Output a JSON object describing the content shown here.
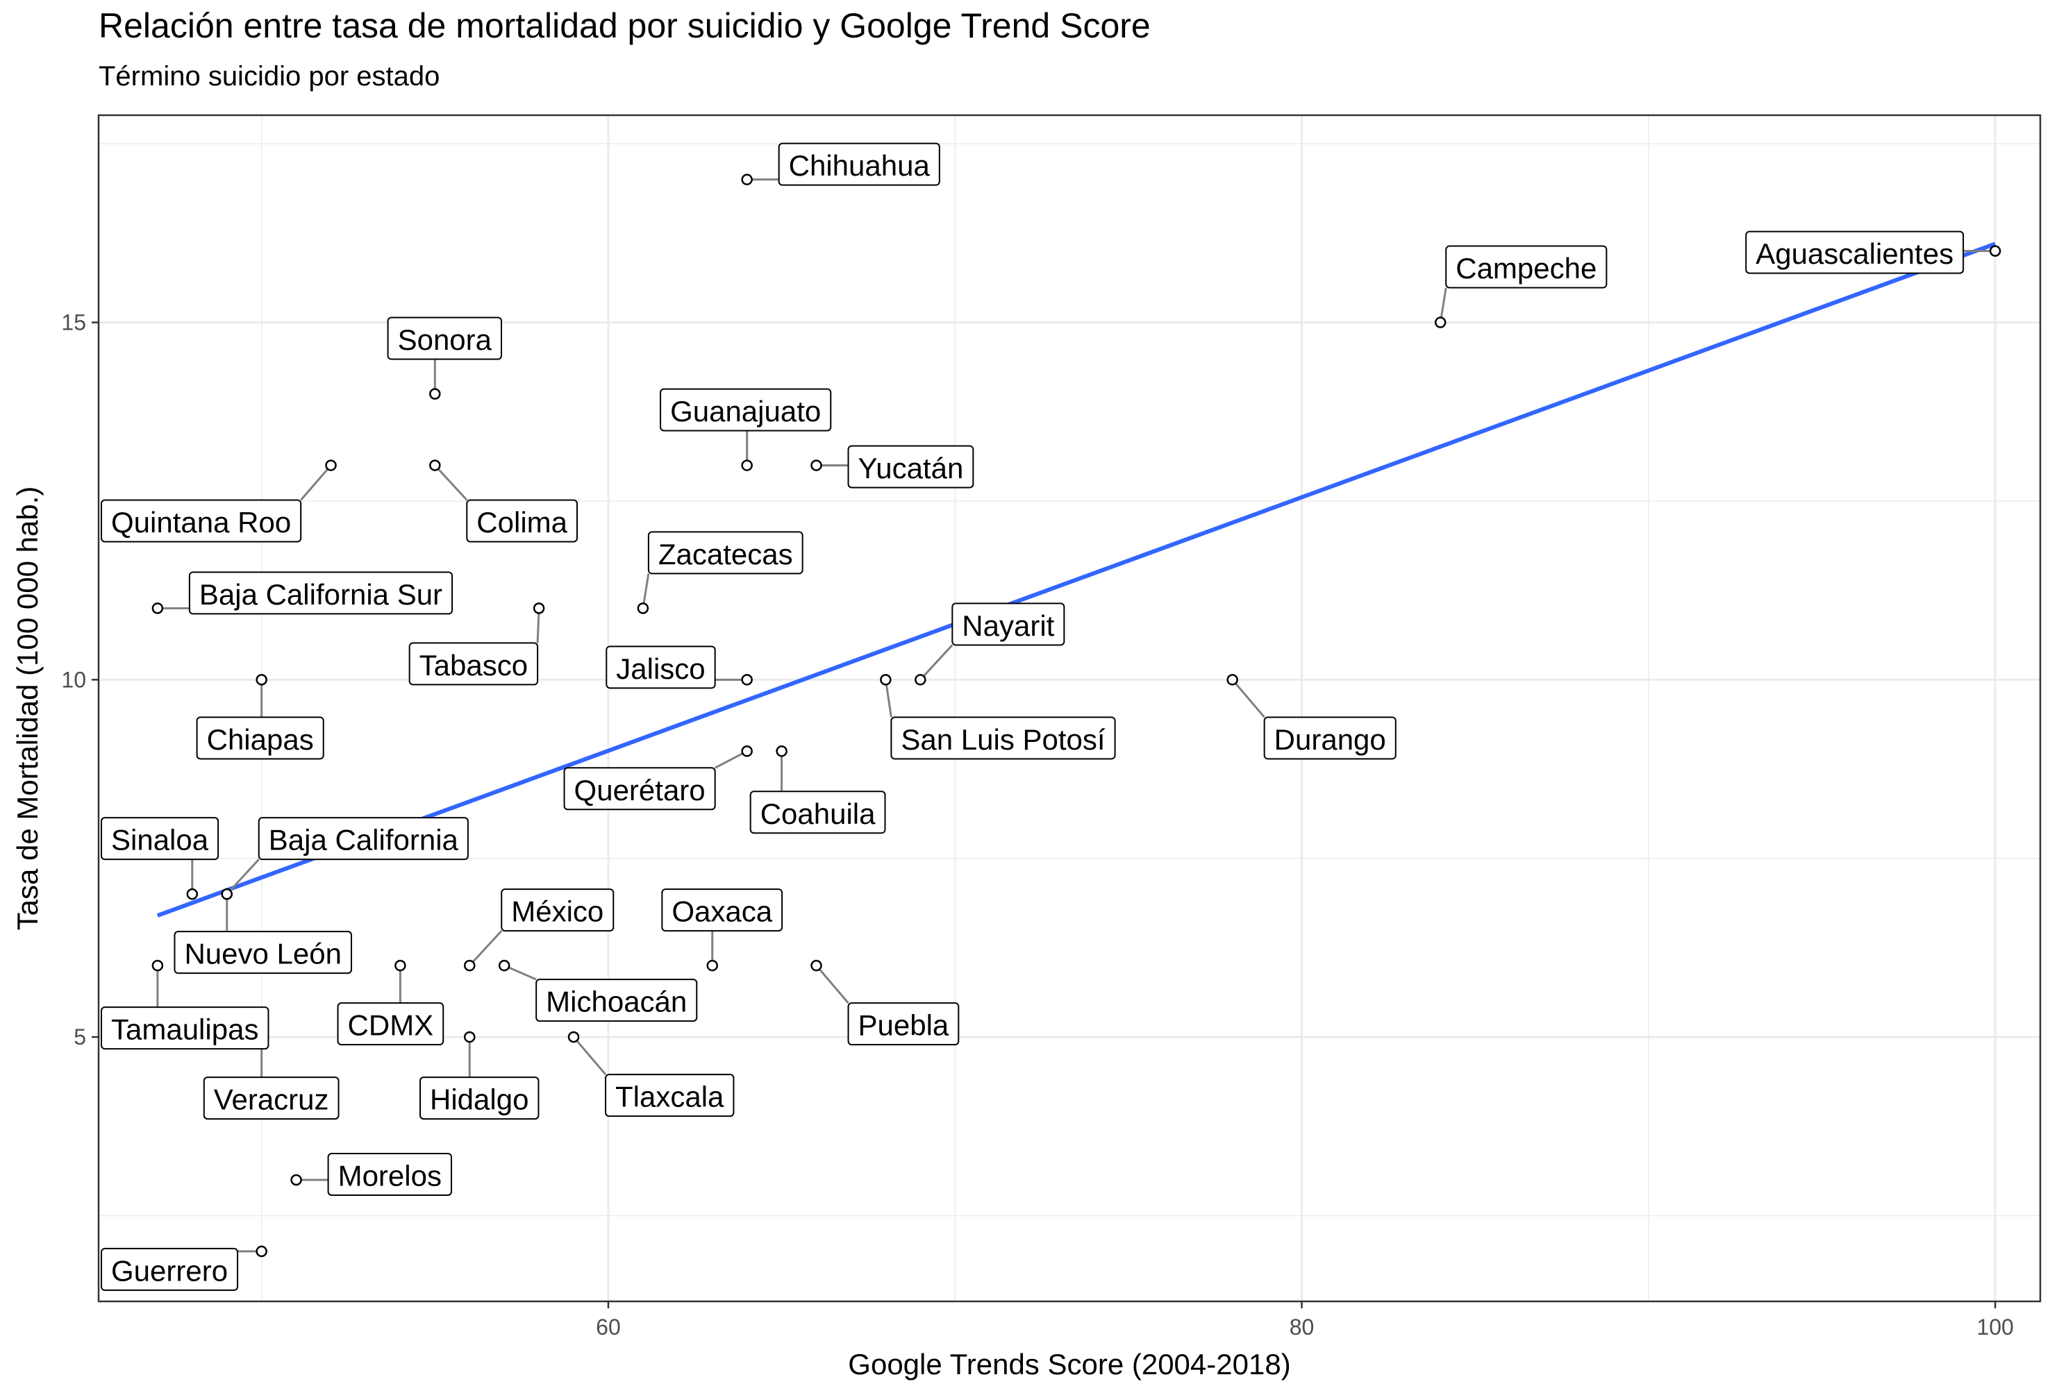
{
  "chart_data": {
    "type": "scatter",
    "title": "Relación entre tasa de mortalidad por suicidio y Goolge Trend Score",
    "subtitle": "Término suicidio por estado",
    "xlabel": "Google Trends Score (2004-2018)",
    "ylabel": "Tasa de Mortalidad   (100 000 hab.)",
    "xlim": [
      45.3,
      101.3
    ],
    "ylim": [
      1.3,
      17.9
    ],
    "x_ticks": [
      60,
      80,
      100
    ],
    "y_ticks": [
      5,
      10,
      15
    ],
    "x_tick_labels": [
      "60",
      "80",
      "100"
    ],
    "y_tick_labels": [
      "5",
      "10",
      "15"
    ],
    "grid": true,
    "points": [
      {
        "label": "Chihuahua",
        "x": 64,
        "y": 17
      },
      {
        "label": "Aguascalientes",
        "x": 100,
        "y": 16
      },
      {
        "label": "Campeche",
        "x": 84,
        "y": 15
      },
      {
        "label": "Sonora",
        "x": 55,
        "y": 14
      },
      {
        "label": "Guanajuato",
        "x": 64,
        "y": 13
      },
      {
        "label": "Yucatán",
        "x": 66,
        "y": 13
      },
      {
        "label": "Quintana Roo",
        "x": 52,
        "y": 13
      },
      {
        "label": "Colima",
        "x": 55,
        "y": 13
      },
      {
        "label": "Zacatecas",
        "x": 61,
        "y": 11
      },
      {
        "label": "Baja California Sur",
        "x": 47,
        "y": 11
      },
      {
        "label": "Tabasco",
        "x": 58,
        "y": 11
      },
      {
        "label": "Jalisco",
        "x": 64,
        "y": 10
      },
      {
        "label": "Nayarit",
        "x": 69,
        "y": 10
      },
      {
        "label": "Chiapas",
        "x": 50,
        "y": 10
      },
      {
        "label": "San Luis Potosí",
        "x": 68,
        "y": 10
      },
      {
        "label": "Durango",
        "x": 78,
        "y": 10
      },
      {
        "label": "Querétaro",
        "x": 64,
        "y": 9
      },
      {
        "label": "Coahuila",
        "x": 65,
        "y": 9
      },
      {
        "label": "Sinaloa",
        "x": 48,
        "y": 7
      },
      {
        "label": "Baja California",
        "x": 49,
        "y": 7
      },
      {
        "label": "Nuevo León",
        "x": 49,
        "y": 7
      },
      {
        "label": "México",
        "x": 56,
        "y": 6
      },
      {
        "label": "Oaxaca",
        "x": 63,
        "y": 6
      },
      {
        "label": "Michoacán",
        "x": 57,
        "y": 6
      },
      {
        "label": "Tamaulipas",
        "x": 47,
        "y": 6
      },
      {
        "label": "CDMX",
        "x": 54,
        "y": 6
      },
      {
        "label": "Puebla",
        "x": 66,
        "y": 6
      },
      {
        "label": "Veracruz",
        "x": 50,
        "y": 5
      },
      {
        "label": "Hidalgo",
        "x": 56,
        "y": 5
      },
      {
        "label": "Tlaxcala",
        "x": 59,
        "y": 5
      },
      {
        "label": "Morelos",
        "x": 51,
        "y": 3
      },
      {
        "label": "Guerrero",
        "x": 50,
        "y": 2
      }
    ],
    "trend_line": {
      "type": "linear",
      "x": [
        47,
        100
      ],
      "y": [
        6.7,
        16.1
      ]
    },
    "colors": {
      "trend": "#3366FF",
      "point_fill": "#FFFFFF",
      "point_stroke": "#000000",
      "panel_border": "#333333",
      "grid": "#EBEBEB",
      "axis_text": "#4D4D4D"
    }
  }
}
